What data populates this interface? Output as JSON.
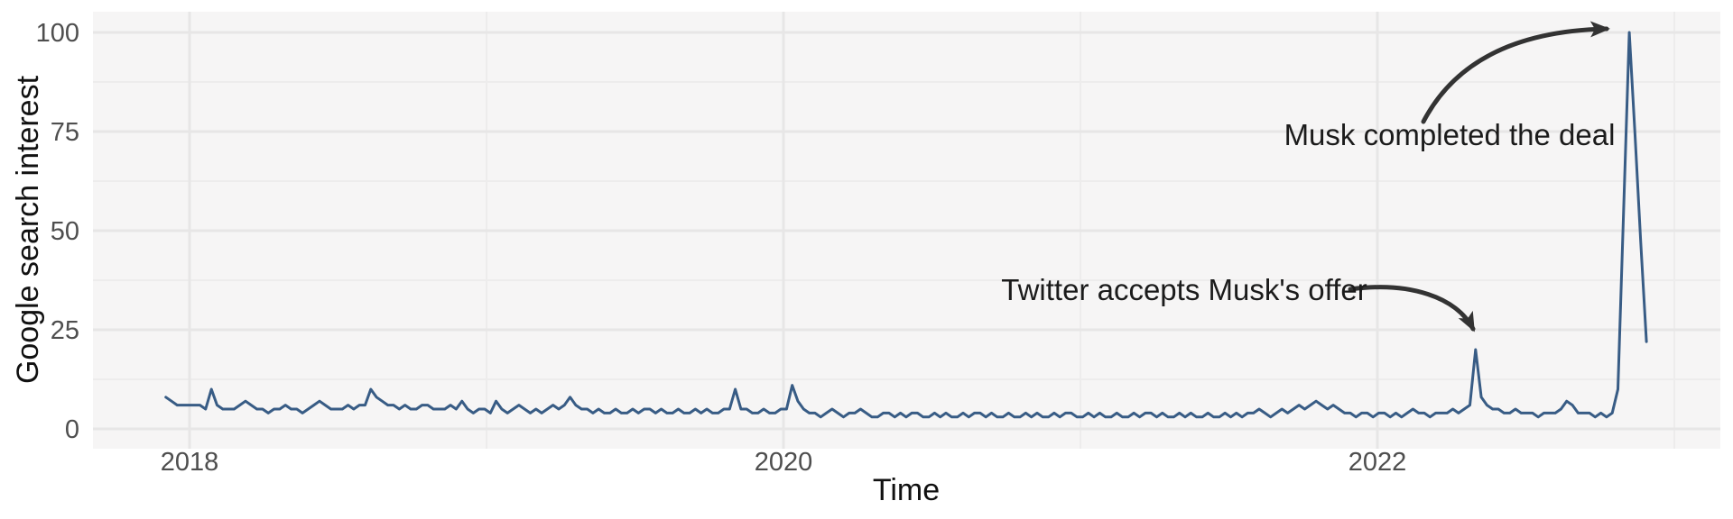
{
  "figure": {
    "background": "#ffffff",
    "panel_background": "#f6f5f5",
    "grid_major_color": "#e7e6e6",
    "grid_minor_color": "#edecec"
  },
  "chart_data": {
    "type": "line",
    "title": "",
    "xlabel": "Time",
    "ylabel": "Google search interest",
    "legend": "none",
    "grid": "on",
    "ylim": [
      0,
      100
    ],
    "x_range_years": [
      2017.92,
      2022.906
    ],
    "x_ticks": [
      {
        "value": 2018,
        "label": "2018"
      },
      {
        "value": 2020,
        "label": "2020"
      },
      {
        "value": 2022,
        "label": "2022"
      }
    ],
    "x_minor_ticks": [
      2019,
      2021,
      2023
    ],
    "y_ticks": [
      {
        "value": 0,
        "label": "0"
      },
      {
        "value": 25,
        "label": "25"
      },
      {
        "value": 50,
        "label": "50"
      },
      {
        "value": 75,
        "label": "75"
      },
      {
        "value": 100,
        "label": "100"
      }
    ],
    "y_minor_ticks": [
      12.5,
      37.5,
      62.5,
      87.5
    ],
    "line_color": "#385c85",
    "arrow_color": "#333333",
    "series": [
      {
        "name": "Google search interest",
        "cadence": "weekly",
        "values": [
          8,
          7,
          6,
          6,
          6,
          6,
          6,
          5,
          10,
          6,
          5,
          5,
          5,
          6,
          7,
          6,
          5,
          5,
          4,
          5,
          5,
          6,
          5,
          5,
          4,
          5,
          6,
          7,
          6,
          5,
          5,
          5,
          6,
          5,
          6,
          6,
          10,
          8,
          7,
          6,
          6,
          5,
          6,
          5,
          5,
          6,
          6,
          5,
          5,
          5,
          6,
          5,
          7,
          5,
          4,
          5,
          5,
          4,
          7,
          5,
          4,
          5,
          6,
          5,
          4,
          5,
          4,
          5,
          6,
          5,
          6,
          8,
          6,
          5,
          5,
          4,
          5,
          4,
          4,
          5,
          4,
          4,
          5,
          4,
          5,
          5,
          4,
          5,
          4,
          4,
          5,
          4,
          4,
          5,
          4,
          5,
          4,
          4,
          5,
          5,
          10,
          5,
          5,
          4,
          4,
          5,
          4,
          4,
          5,
          5,
          11,
          7,
          5,
          4,
          4,
          3,
          4,
          5,
          4,
          3,
          4,
          4,
          5,
          4,
          3,
          3,
          4,
          4,
          3,
          4,
          3,
          4,
          4,
          3,
          3,
          4,
          3,
          4,
          3,
          3,
          4,
          3,
          4,
          4,
          3,
          4,
          3,
          3,
          4,
          3,
          3,
          4,
          3,
          4,
          3,
          3,
          4,
          3,
          4,
          4,
          3,
          3,
          4,
          3,
          4,
          3,
          3,
          4,
          3,
          3,
          4,
          3,
          4,
          4,
          3,
          4,
          3,
          3,
          4,
          3,
          4,
          3,
          3,
          4,
          3,
          3,
          4,
          3,
          4,
          3,
          4,
          4,
          5,
          4,
          3,
          4,
          5,
          4,
          5,
          6,
          5,
          6,
          7,
          6,
          5,
          6,
          5,
          4,
          4,
          3,
          4,
          4,
          3,
          4,
          4,
          3,
          4,
          3,
          4,
          5,
          4,
          4,
          3,
          4,
          4,
          4,
          5,
          4,
          5,
          6,
          20,
          8,
          6,
          5,
          5,
          4,
          4,
          5,
          4,
          4,
          4,
          3,
          4,
          4,
          4,
          5,
          7,
          6,
          4,
          4,
          4,
          3,
          4,
          3,
          4,
          10,
          55,
          100,
          74,
          47,
          22
        ]
      }
    ],
    "annotations": [
      {
        "text": "Musk completed the deal",
        "points_to": {
          "x_year": 2022.85,
          "y": 100
        }
      },
      {
        "text": "Twitter accepts Musk's offer",
        "points_to": {
          "x_year": 2022.3,
          "y": 20
        }
      }
    ]
  }
}
